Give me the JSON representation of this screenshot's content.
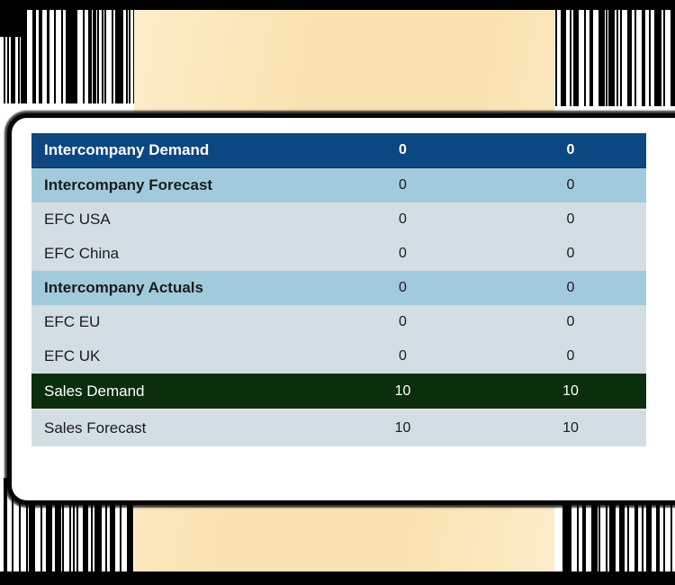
{
  "colors": {
    "header_blue": "#0d4781",
    "subheader_blue": "#a1cbdc",
    "item_row": "#d3dee4",
    "header_green": "#0b2e0d",
    "row_text_dark": "#1b1b1b",
    "row_text_light": "#ffffff",
    "backdrop_tan": "#fae3b2",
    "backdrop_tan_light": "#fcecc9",
    "frame_black": "#060606",
    "card_white": "#ffffff"
  },
  "table": {
    "rows": [
      {
        "label": "Intercompany Demand",
        "values": [
          "0",
          "0"
        ],
        "style": "header-blue"
      },
      {
        "label": "Intercompany Forecast",
        "values": [
          "0",
          "0"
        ],
        "style": "subheader-blue"
      },
      {
        "label": "EFC USA",
        "values": [
          "0",
          "0"
        ],
        "style": "item"
      },
      {
        "label": "EFC China",
        "values": [
          "0",
          "0"
        ],
        "style": "item"
      },
      {
        "label": "Intercompany Actuals",
        "values": [
          "0",
          "0"
        ],
        "style": "subheader-blue"
      },
      {
        "label": "EFC EU",
        "values": [
          "0",
          "0"
        ],
        "style": "item"
      },
      {
        "label": "EFC UK",
        "values": [
          "0",
          "0"
        ],
        "style": "item"
      },
      {
        "label": "Sales Demand",
        "values": [
          "10",
          "10"
        ],
        "style": "header-green"
      },
      {
        "label": "Sales Forecast",
        "values": [
          "10",
          "10"
        ],
        "style": "item"
      }
    ]
  }
}
